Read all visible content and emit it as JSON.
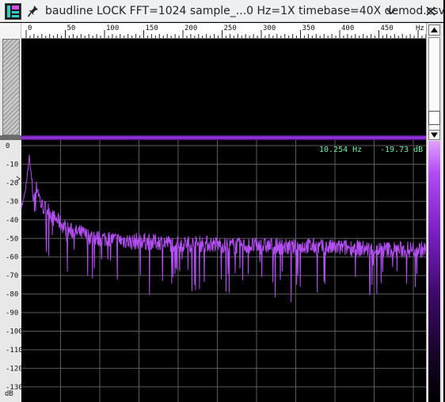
{
  "window": {
    "title": "baudline LOCK FFT=1024 sample_...0 Hz=1X timebase=40X demod.csv",
    "icons": {
      "app": "baudline-app-icon",
      "pin": "pin-icon",
      "chevron": "chevron-down-icon",
      "close": "close-icon"
    }
  },
  "ruler": {
    "ticks": [
      "0",
      "50",
      "100",
      "150",
      "200",
      "250",
      "300",
      "350",
      "400",
      "450"
    ],
    "unit": "Hz"
  },
  "spectrum": {
    "y_ticks": [
      "0",
      "-10",
      "-20",
      "-30",
      "-40",
      "-50",
      "-60",
      "-70",
      "-80",
      "-90",
      "-100",
      "-110",
      "-120",
      "-130"
    ],
    "y_unit": "dB",
    "cursor_freq": "10.254 Hz",
    "cursor_level": "-19.73 dB"
  },
  "colors": {
    "trace": "#b34ef3",
    "grid": "#5c5c5c",
    "readout": "#6ff0a8"
  },
  "chart_data": {
    "type": "line",
    "xlim": [
      0,
      510
    ],
    "ylim": [
      -135,
      0
    ],
    "x": [
      0,
      5,
      10,
      15,
      20,
      25,
      30,
      35,
      40,
      45,
      50,
      55,
      60,
      65,
      70,
      75,
      80,
      85,
      90,
      95,
      100,
      110,
      120,
      130,
      140,
      150,
      160,
      170,
      180,
      190,
      200,
      220,
      240,
      260,
      280,
      300,
      320,
      340,
      360,
      380,
      400,
      420,
      440,
      460,
      480,
      500,
      510
    ],
    "y": [
      -33,
      -25,
      -6,
      -28,
      -22,
      -32,
      -34,
      -35,
      -39,
      -40,
      -42,
      -44,
      -46,
      -46,
      -47,
      -47,
      -48,
      -49,
      -49,
      -50,
      -50,
      -50,
      -51,
      -51,
      -52,
      -51,
      -52,
      -52,
      -52,
      -53,
      -53,
      -53,
      -53,
      -54,
      -54,
      -54,
      -54,
      -55,
      -54,
      -55,
      -55,
      -55,
      -56,
      -56,
      -56,
      -56,
      -56
    ]
  }
}
